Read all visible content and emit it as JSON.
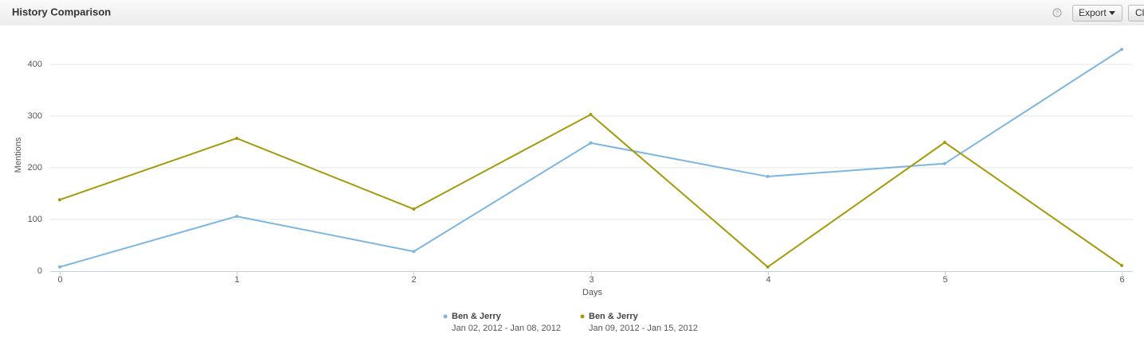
{
  "header": {
    "title": "History Comparison",
    "help": "?",
    "export": "Export",
    "cut_button": "Cl"
  },
  "chart_data": {
    "type": "line",
    "x": [
      0,
      1,
      2,
      3,
      4,
      5,
      6
    ],
    "xlim": [
      0,
      6
    ],
    "xticks": [
      0,
      1,
      2,
      3,
      4,
      5,
      6
    ],
    "ylim": [
      0,
      450
    ],
    "yticks": [
      0,
      100,
      200,
      300,
      400
    ],
    "x_label": "Days",
    "y_label": "Mentions",
    "grid": true,
    "series": [
      {
        "name": "Ben & Jerry",
        "date_range": "Jan 02, 2012 - Jan 08, 2012",
        "color": "#7cb5e0",
        "values": [
          8,
          106,
          38,
          248,
          183,
          208,
          429
        ]
      },
      {
        "name": "Ben & Jerry",
        "date_range": "Jan 09, 2012 - Jan 15, 2012",
        "color": "#a39a0c",
        "values": [
          138,
          257,
          120,
          303,
          8,
          249,
          11
        ]
      }
    ]
  }
}
